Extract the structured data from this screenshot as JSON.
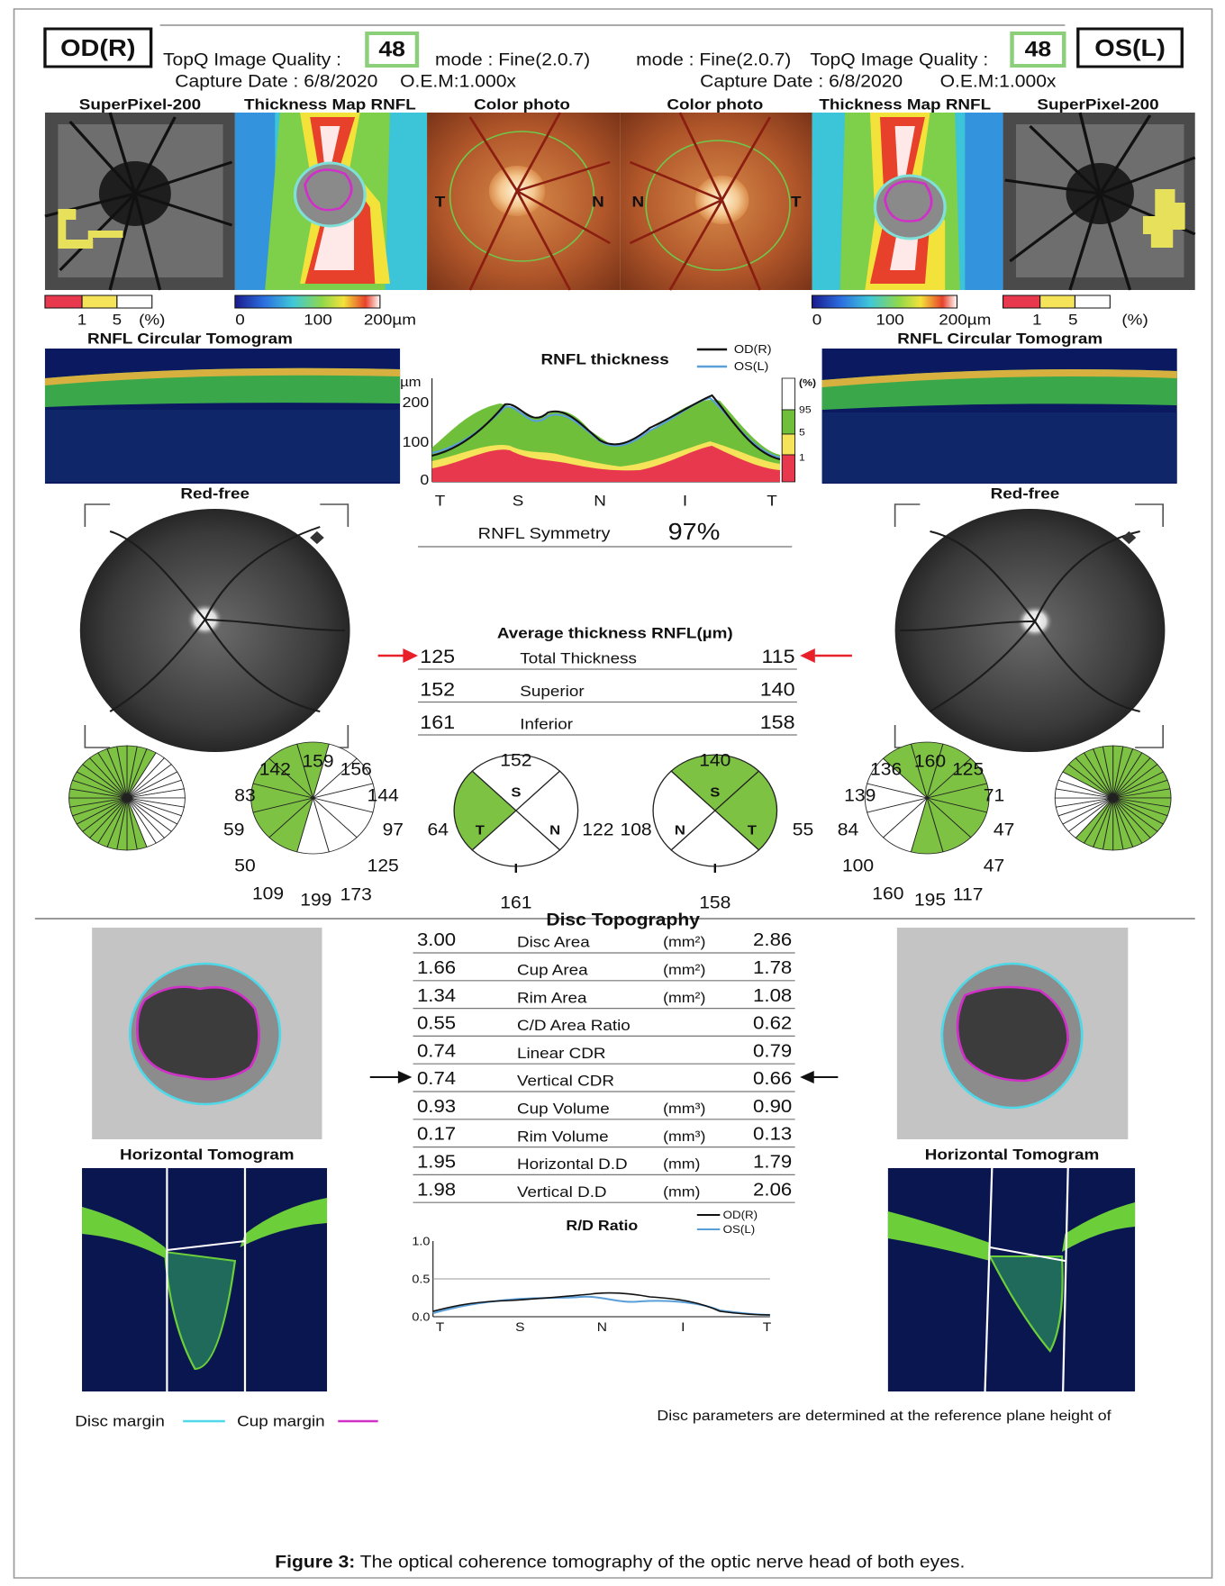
{
  "header": {
    "od": {
      "eye": "OD(R)",
      "quality_label": "TopQ Image Quality :",
      "quality": "48",
      "mode": "mode : Fine(2.0.7)",
      "capture_date": "Capture Date : 6/8/2020",
      "oem": "O.E.M:1.000x"
    },
    "os": {
      "eye": "OS(L)",
      "quality_label": "TopQ Image Quality :",
      "quality": "48",
      "mode": "mode : Fine(2.0.7)",
      "capture_date": "Capture Date : 6/8/2020",
      "oem": "O.E.M:1.000x"
    }
  },
  "panel_titles": [
    "SuperPixel-200",
    "Thickness Map RNFL",
    "Color photo",
    "Color photo",
    "Thickness Map RNFL",
    "SuperPixel-200"
  ],
  "photo_labels": [
    "T",
    "N",
    "N",
    "T"
  ],
  "superpixel_scale": {
    "ticks": [
      "1",
      "5"
    ],
    "unit": "(%)"
  },
  "thickness_scale": [
    "0",
    "100",
    "200µm"
  ],
  "circular_tomogram_title": "RNFL Circular Tomogram",
  "rnfl_thickness": {
    "title": "RNFL thickness",
    "legend": [
      "OD(R)",
      "OS(L)"
    ],
    "unit": "µm",
    "yticks": [
      "200",
      "100",
      "0"
    ],
    "xticks": [
      "T",
      "S",
      "N",
      "I",
      "T"
    ],
    "percentiles": [
      "(%)",
      "95",
      "5",
      "1"
    ]
  },
  "symmetry": {
    "label": "RNFL Symmetry",
    "value": "97%"
  },
  "red_free_title": "Red-free",
  "average_thickness": {
    "title": "Average thickness RNFL(µm)",
    "rows": [
      {
        "od": "125",
        "label": "Total Thickness",
        "os": "115"
      },
      {
        "od": "152",
        "label": "Superior",
        "os": "140"
      },
      {
        "od": "161",
        "label": "Inferior",
        "os": "158"
      }
    ]
  },
  "clock_hours": {
    "od": [
      "142",
      "159",
      "156",
      "144",
      "97",
      "125",
      "173",
      "199",
      "109",
      "50",
      "59",
      "83"
    ],
    "os": [
      "136",
      "160",
      "125",
      "71",
      "47",
      "47",
      "117",
      "195",
      "160",
      "100",
      "84",
      "139"
    ]
  },
  "quadrants": {
    "od": [
      {
        "letter": "S",
        "value": "152"
      },
      {
        "letter": "T",
        "value": "64"
      },
      {
        "letter": "N",
        "value": "122"
      },
      {
        "letter": "I",
        "value": "161"
      }
    ],
    "os": [
      {
        "letter": "S",
        "value": "140"
      },
      {
        "letter": "N",
        "value": "108"
      },
      {
        "letter": "T",
        "value": "55"
      },
      {
        "letter": "I",
        "value": "158"
      }
    ]
  },
  "disc_topography": {
    "title": "Disc Topography",
    "rows": [
      {
        "od": "3.00",
        "label": "Disc Area",
        "unit": "(mm²)",
        "os": "2.86"
      },
      {
        "od": "1.66",
        "label": "Cup Area",
        "unit": "(mm²)",
        "os": "1.78"
      },
      {
        "od": "1.34",
        "label": "Rim Area",
        "unit": "(mm²)",
        "os": "1.08"
      },
      {
        "od": "0.55",
        "label": "C/D Area Ratio",
        "os": "0.62"
      },
      {
        "od": "0.74",
        "label": "Linear CDR",
        "os": "0.79"
      },
      {
        "od": "0.74",
        "label": "Vertical CDR",
        "os": "0.66"
      },
      {
        "od": "0.93",
        "label": "Cup Volume",
        "unit": "(mm³)",
        "os": "0.90"
      },
      {
        "od": "0.17",
        "label": "Rim Volume",
        "unit": "(mm³)",
        "os": "0.13"
      },
      {
        "od": "1.95",
        "label": "Horizontal D.D",
        "unit": "(mm)",
        "os": "1.79"
      },
      {
        "od": "1.98",
        "label": "Vertical D.D",
        "unit": "(mm)",
        "os": "2.06"
      }
    ]
  },
  "horizontal_tomogram_title": "Horizontal Tomogram",
  "rd_ratio": {
    "title": "R/D Ratio",
    "legend": [
      "OD(R)",
      "OS(L)"
    ],
    "yticks": [
      "1.0",
      "0.5",
      "0.0"
    ],
    "xticks": [
      "T",
      "S",
      "N",
      "I",
      "T"
    ]
  },
  "margin_legend": {
    "disc_margin": "Disc margin",
    "cup_margin": "Cup margin"
  },
  "note": "Disc parameters are determined at the reference plane height of",
  "caption": {
    "label": "Figure 3:",
    "text": " The optical coherence tomography of the optic nerve head of both eyes."
  }
}
